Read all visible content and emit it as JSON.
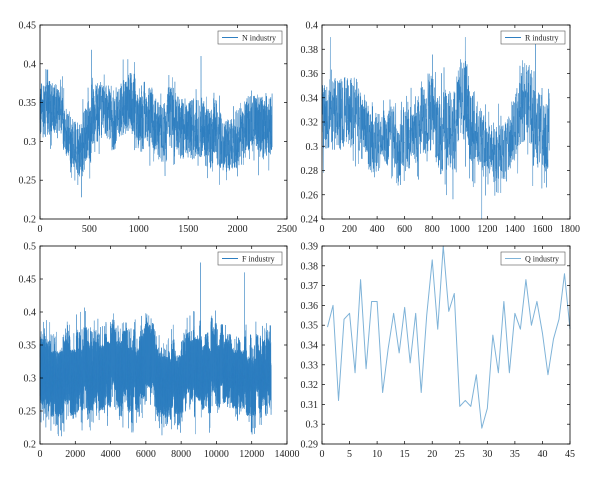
{
  "chart_data": [
    {
      "type": "line",
      "legend": "N industry",
      "legend_position": "top-right",
      "series_color": "#2f7fc1",
      "xlim": [
        0,
        2500
      ],
      "ylim": [
        0.2,
        0.45
      ],
      "xticks": [
        0,
        500,
        1000,
        1500,
        2000,
        2500
      ],
      "yticks": [
        0.2,
        0.25,
        0.3,
        0.35,
        0.4,
        0.45
      ],
      "xtick_labels": [
        "0",
        "500",
        "1000",
        "1500",
        "2000",
        "2500"
      ],
      "ytick_labels": [
        "0.2",
        "0.25",
        "0.3",
        "0.35",
        "0.4",
        "0.45"
      ],
      "n_points": 2350,
      "profile": [
        {
          "x": 0,
          "center": 0.34,
          "amp": 0.035
        },
        {
          "x": 200,
          "center": 0.34,
          "amp": 0.035
        },
        {
          "x": 300,
          "center": 0.315,
          "amp": 0.03
        },
        {
          "x": 400,
          "center": 0.3,
          "amp": 0.035
        },
        {
          "x": 500,
          "center": 0.33,
          "amp": 0.045
        },
        {
          "x": 700,
          "center": 0.32,
          "amp": 0.035
        },
        {
          "x": 900,
          "center": 0.335,
          "amp": 0.04
        },
        {
          "x": 1100,
          "center": 0.33,
          "amp": 0.04
        },
        {
          "x": 1400,
          "center": 0.325,
          "amp": 0.04
        },
        {
          "x": 1700,
          "center": 0.325,
          "amp": 0.04
        },
        {
          "x": 1900,
          "center": 0.305,
          "amp": 0.035
        },
        {
          "x": 2100,
          "center": 0.325,
          "amp": 0.04
        },
        {
          "x": 2350,
          "center": 0.32,
          "amp": 0.04
        }
      ],
      "extremes": [
        {
          "x": 420,
          "y": 0.228
        },
        {
          "x": 520,
          "y": 0.418
        },
        {
          "x": 1630,
          "y": 0.41
        },
        {
          "x": 2000,
          "y": 0.255
        }
      ]
    },
    {
      "type": "line",
      "legend": "R industry",
      "legend_position": "top-right",
      "series_color": "#2f7fc1",
      "xlim": [
        0,
        1800
      ],
      "ylim": [
        0.24,
        0.4
      ],
      "xticks": [
        0,
        200,
        400,
        600,
        800,
        1000,
        1200,
        1400,
        1600,
        1800
      ],
      "yticks": [
        0.24,
        0.26,
        0.28,
        0.3,
        0.32,
        0.34,
        0.36,
        0.38,
        0.4
      ],
      "xtick_labels": [
        "0",
        "200",
        "400",
        "600",
        "800",
        "1000",
        "1200",
        "1400",
        "1600",
        "1800"
      ],
      "ytick_labels": [
        "0.24",
        "0.26",
        "0.28",
        "0.3",
        "0.32",
        "0.34",
        "0.36",
        "0.38",
        "0.4"
      ],
      "n_points": 1650,
      "profile": [
        {
          "x": 0,
          "center": 0.325,
          "amp": 0.03
        },
        {
          "x": 250,
          "center": 0.33,
          "amp": 0.03
        },
        {
          "x": 350,
          "center": 0.295,
          "amp": 0.025
        },
        {
          "x": 500,
          "center": 0.3,
          "amp": 0.025
        },
        {
          "x": 700,
          "center": 0.315,
          "amp": 0.03
        },
        {
          "x": 900,
          "center": 0.325,
          "amp": 0.035
        },
        {
          "x": 1050,
          "center": 0.32,
          "amp": 0.035
        },
        {
          "x": 1200,
          "center": 0.285,
          "amp": 0.025
        },
        {
          "x": 1350,
          "center": 0.29,
          "amp": 0.025
        },
        {
          "x": 1450,
          "center": 0.33,
          "amp": 0.035
        },
        {
          "x": 1650,
          "center": 0.32,
          "amp": 0.03
        }
      ],
      "extremes": [
        {
          "x": 60,
          "y": 0.39
        },
        {
          "x": 1040,
          "y": 0.39
        },
        {
          "x": 1160,
          "y": 0.24
        },
        {
          "x": 1550,
          "y": 0.39
        }
      ]
    },
    {
      "type": "line",
      "legend": "F industry",
      "legend_position": "top-right",
      "series_color": "#2f7fc1",
      "xlim": [
        0,
        14000
      ],
      "ylim": [
        0.2,
        0.5
      ],
      "xticks": [
        0,
        2000,
        4000,
        6000,
        8000,
        10000,
        12000,
        14000
      ],
      "yticks": [
        0.2,
        0.25,
        0.3,
        0.35,
        0.4,
        0.45,
        0.5
      ],
      "xtick_labels": [
        "0",
        "2000",
        "4000",
        "6000",
        "8000",
        "10000",
        "12000",
        "14000"
      ],
      "ytick_labels": [
        "0.2",
        "0.25",
        "0.3",
        "0.35",
        "0.4",
        "0.45",
        "0.5"
      ],
      "n_points": 13100,
      "profile": [
        {
          "x": 0,
          "center": 0.31,
          "amp": 0.05
        },
        {
          "x": 2000,
          "center": 0.31,
          "amp": 0.05
        },
        {
          "x": 4000,
          "center": 0.32,
          "amp": 0.05
        },
        {
          "x": 6000,
          "center": 0.315,
          "amp": 0.05
        },
        {
          "x": 8000,
          "center": 0.3,
          "amp": 0.045
        },
        {
          "x": 9500,
          "center": 0.32,
          "amp": 0.05
        },
        {
          "x": 11000,
          "center": 0.31,
          "amp": 0.045
        },
        {
          "x": 13100,
          "center": 0.305,
          "amp": 0.045
        }
      ],
      "extremes": [
        {
          "x": 9100,
          "y": 0.475
        },
        {
          "x": 4700,
          "y": 0.225
        },
        {
          "x": 8800,
          "y": 0.215
        },
        {
          "x": 11600,
          "y": 0.46
        }
      ]
    },
    {
      "type": "line",
      "legend": "Q industry",
      "legend_position": "top-right",
      "series_color": "#7fb3d8",
      "xlim": [
        0,
        45
      ],
      "ylim": [
        0.29,
        0.39
      ],
      "xticks": [
        0,
        5,
        10,
        15,
        20,
        25,
        30,
        35,
        40,
        45
      ],
      "yticks": [
        0.29,
        0.3,
        0.31,
        0.32,
        0.33,
        0.34,
        0.35,
        0.36,
        0.37,
        0.38,
        0.39
      ],
      "xtick_labels": [
        "0",
        "5",
        "10",
        "15",
        "20",
        "25",
        "30",
        "35",
        "40",
        "45"
      ],
      "ytick_labels": [
        "0.29",
        "0.3",
        "0.31",
        "0.32",
        "0.33",
        "0.34",
        "0.35",
        "0.36",
        "0.37",
        "0.38",
        "0.39"
      ],
      "x": [
        1,
        2,
        3,
        4,
        5,
        6,
        7,
        8,
        9,
        10,
        11,
        12,
        13,
        14,
        15,
        16,
        17,
        18,
        19,
        20,
        21,
        22,
        23,
        24,
        25,
        26,
        27,
        28,
        29,
        30,
        31,
        32,
        33,
        34,
        35,
        36,
        37,
        38,
        39,
        40,
        41,
        42,
        43,
        44,
        45
      ],
      "y": [
        0.349,
        0.36,
        0.312,
        0.353,
        0.356,
        0.326,
        0.373,
        0.328,
        0.362,
        0.362,
        0.316,
        0.338,
        0.356,
        0.336,
        0.359,
        0.331,
        0.356,
        0.316,
        0.355,
        0.383,
        0.348,
        0.39,
        0.357,
        0.366,
        0.309,
        0.312,
        0.309,
        0.325,
        0.298,
        0.308,
        0.345,
        0.326,
        0.362,
        0.326,
        0.356,
        0.348,
        0.373,
        0.35,
        0.362,
        0.346,
        0.325,
        0.343,
        0.353,
        0.376,
        0.348
      ]
    }
  ]
}
